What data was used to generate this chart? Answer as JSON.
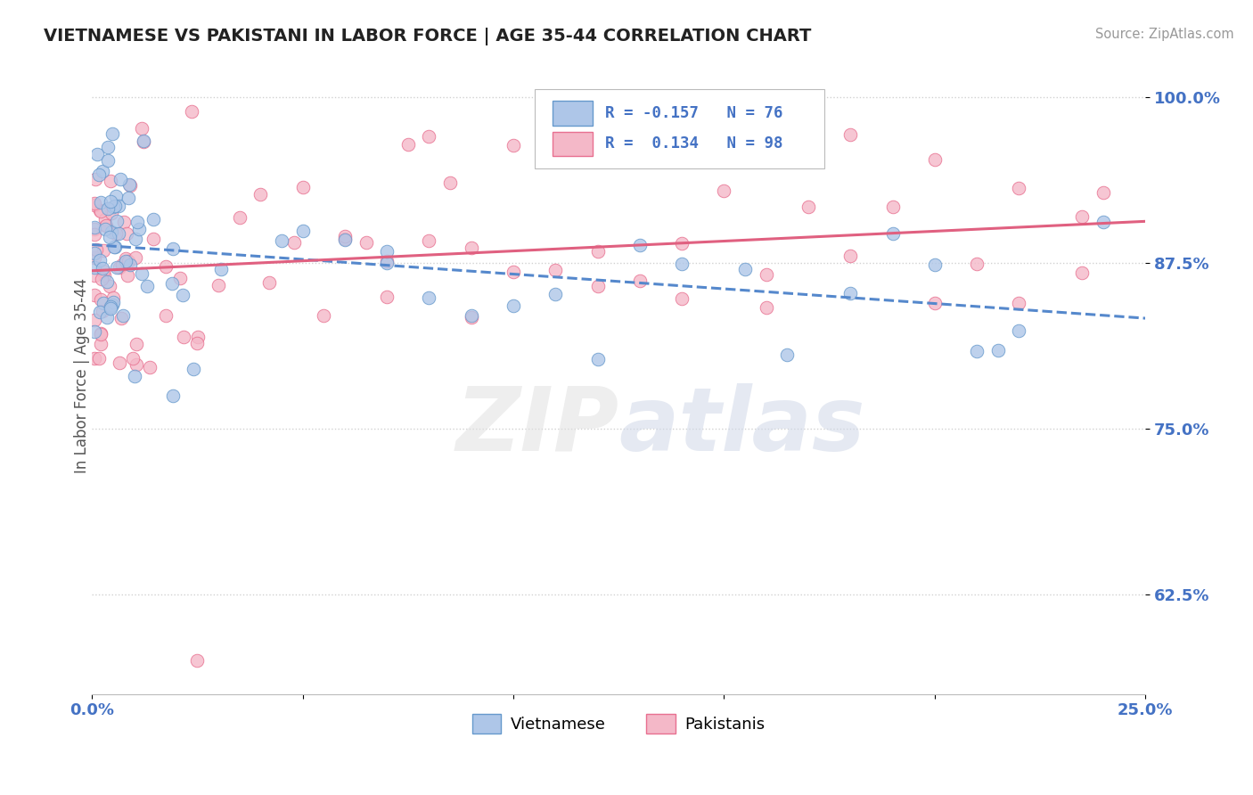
{
  "title": "VIETNAMESE VS PAKISTANI IN LABOR FORCE | AGE 35-44 CORRELATION CHART",
  "source": "Source: ZipAtlas.com",
  "ylabel": "In Labor Force | Age 35-44",
  "xlim": [
    0.0,
    0.25
  ],
  "ylim": [
    0.55,
    1.03
  ],
  "xticks": [
    0.0,
    0.25
  ],
  "xticklabels": [
    "0.0%",
    "25.0%"
  ],
  "yticks": [
    0.625,
    0.75,
    0.875,
    1.0
  ],
  "yticklabels": [
    "62.5%",
    "75.0%",
    "87.5%",
    "100.0%"
  ],
  "r_vietnamese": -0.157,
  "n_vietnamese": 76,
  "r_pakistani": 0.134,
  "n_pakistani": 98,
  "color_vietnamese": "#aec6e8",
  "color_pakistani": "#f4b8c8",
  "edge_color_vietnamese": "#6699cc",
  "edge_color_pakistani": "#e87090",
  "line_color_vietnamese": "#5588cc",
  "line_color_pakistani": "#e06080",
  "watermark_color": "#e8e8e8",
  "background_color": "#ffffff",
  "grid_color": "#cccccc",
  "title_color": "#222222",
  "axis_label_color": "#4472c4",
  "ylabel_color": "#555555",
  "source_color": "#999999"
}
